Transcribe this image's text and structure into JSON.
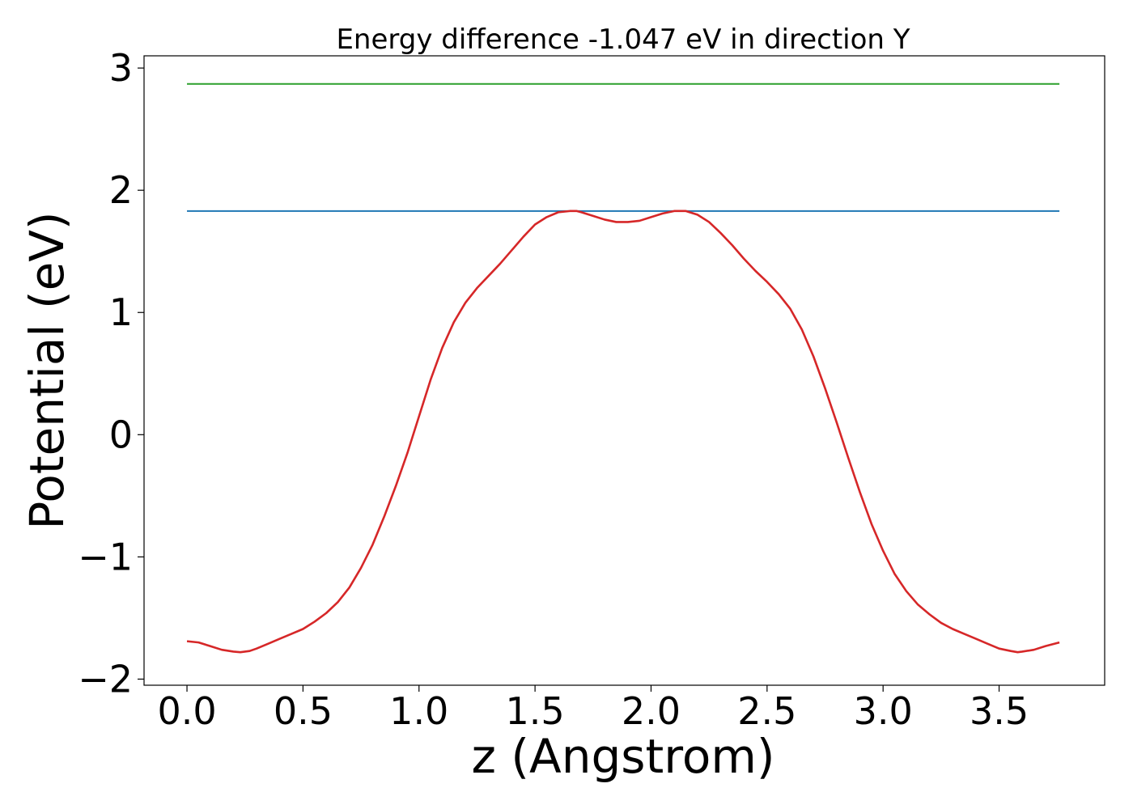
{
  "chart_data": {
    "type": "line",
    "title": "Energy difference -1.047 eV in direction Y",
    "xlabel": "z (Angstrom)",
    "ylabel": "Potential (eV)",
    "xlim": [
      -0.185,
      3.955
    ],
    "ylim": [
      -2.05,
      3.1
    ],
    "xticks": [
      0.0,
      0.5,
      1.0,
      1.5,
      2.0,
      2.5,
      3.0,
      3.5
    ],
    "xtick_labels": [
      "0.0",
      "0.5",
      "1.0",
      "1.5",
      "2.0",
      "2.5",
      "3.0",
      "3.5"
    ],
    "yticks": [
      -2,
      -1,
      0,
      1,
      2,
      3
    ],
    "ytick_labels": [
      "−2",
      "−1",
      "0",
      "1",
      "2",
      "3"
    ],
    "grid": false,
    "series": [
      {
        "color": "#2ca02c",
        "x": [
          0.0,
          3.76
        ],
        "y": [
          2.87,
          2.87
        ]
      },
      {
        "color": "#1f77b4",
        "x": [
          0.0,
          3.76
        ],
        "y": [
          1.83,
          1.83
        ]
      },
      {
        "color": "#d62728",
        "x": [
          0.0,
          0.05,
          0.1,
          0.15,
          0.2,
          0.23,
          0.27,
          0.3,
          0.35,
          0.4,
          0.45,
          0.5,
          0.55,
          0.6,
          0.65,
          0.7,
          0.75,
          0.8,
          0.85,
          0.9,
          0.95,
          1.0,
          1.05,
          1.1,
          1.15,
          1.2,
          1.25,
          1.3,
          1.35,
          1.4,
          1.45,
          1.5,
          1.55,
          1.6,
          1.65,
          1.68,
          1.7,
          1.75,
          1.8,
          1.85,
          1.9,
          1.95,
          2.0,
          2.05,
          2.1,
          2.15,
          2.2,
          2.25,
          2.3,
          2.35,
          2.4,
          2.45,
          2.5,
          2.55,
          2.6,
          2.65,
          2.7,
          2.75,
          2.8,
          2.85,
          2.9,
          2.95,
          3.0,
          3.05,
          3.1,
          3.15,
          3.2,
          3.25,
          3.3,
          3.35,
          3.4,
          3.45,
          3.5,
          3.55,
          3.58,
          3.6,
          3.65,
          3.7,
          3.76
        ],
        "y": [
          -1.69,
          -1.7,
          -1.73,
          -1.76,
          -1.775,
          -1.78,
          -1.77,
          -1.75,
          -1.71,
          -1.67,
          -1.63,
          -1.59,
          -1.53,
          -1.46,
          -1.37,
          -1.25,
          -1.09,
          -0.9,
          -0.67,
          -0.42,
          -0.15,
          0.15,
          0.45,
          0.71,
          0.92,
          1.08,
          1.2,
          1.3,
          1.4,
          1.51,
          1.62,
          1.72,
          1.78,
          1.82,
          1.83,
          1.83,
          1.82,
          1.79,
          1.76,
          1.74,
          1.74,
          1.75,
          1.78,
          1.81,
          1.83,
          1.83,
          1.8,
          1.74,
          1.65,
          1.55,
          1.44,
          1.34,
          1.25,
          1.15,
          1.03,
          0.86,
          0.64,
          0.38,
          0.1,
          -0.19,
          -0.47,
          -0.73,
          -0.95,
          -1.14,
          -1.28,
          -1.39,
          -1.47,
          -1.54,
          -1.59,
          -1.63,
          -1.67,
          -1.71,
          -1.75,
          -1.77,
          -1.78,
          -1.775,
          -1.76,
          -1.73,
          -1.7
        ]
      }
    ]
  }
}
